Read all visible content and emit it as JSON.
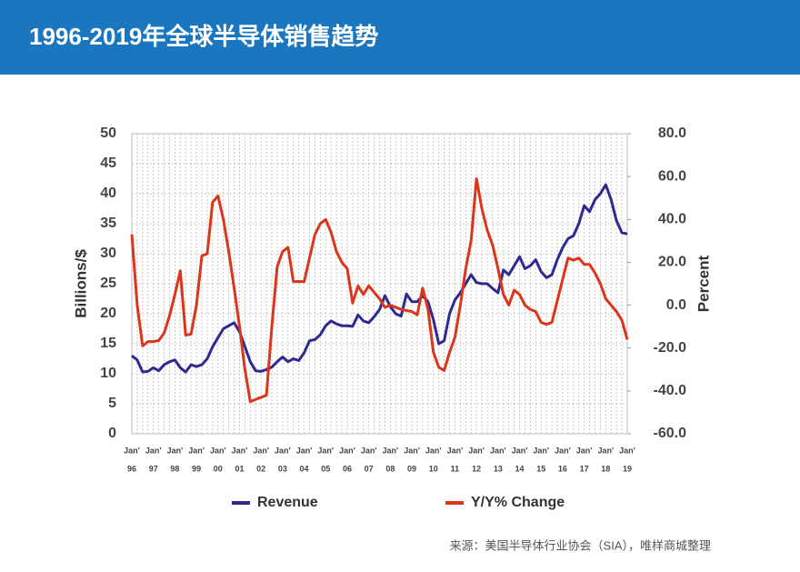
{
  "chart_data": {
    "type": "line",
    "title": "1996-2019年全球半导体销售趋势",
    "y_label": "Billions/$",
    "y2_label": "Percent",
    "source": "来源：美国半导体行业协会（SIA），唯样商城整理",
    "tick_prefix": "Jan'",
    "categories": [
      "96",
      null,
      null,
      null,
      "97",
      null,
      null,
      null,
      "98",
      null,
      null,
      null,
      "99",
      null,
      null,
      null,
      "00",
      null,
      null,
      null,
      "01",
      null,
      null,
      null,
      "02",
      null,
      null,
      null,
      "03",
      null,
      null,
      null,
      "04",
      null,
      null,
      null,
      "05",
      null,
      null,
      null,
      "06",
      null,
      null,
      null,
      "07",
      null,
      null,
      null,
      "08",
      null,
      null,
      null,
      "09",
      null,
      null,
      null,
      "10",
      null,
      null,
      null,
      "11",
      null,
      null,
      null,
      "12",
      null,
      null,
      null,
      "13",
      null,
      null,
      null,
      "14",
      null,
      null,
      null,
      "15",
      null,
      null,
      null,
      "16",
      null,
      null,
      null,
      "17",
      null,
      null,
      null,
      "18",
      null,
      null,
      null,
      "19"
    ],
    "series": [
      {
        "name": "Revenue",
        "color": "#2e2a8f",
        "axis": "y",
        "values": [
          13,
          12.3,
          10.3,
          10.4,
          11,
          10.5,
          11.5,
          12,
          12.3,
          11,
          10.3,
          11.5,
          11.2,
          11.5,
          12.5,
          14.5,
          16,
          17.5,
          18,
          18.5,
          17,
          14.5,
          12,
          10.5,
          10.4,
          10.7,
          11.1,
          12,
          12.8,
          12,
          12.5,
          12.2,
          13.5,
          15.5,
          15.7,
          16.5,
          18,
          18.8,
          18.3,
          18,
          18,
          17.9,
          19.8,
          18.8,
          18.5,
          19.5,
          20.7,
          23,
          21.2,
          20,
          19.6,
          23.3,
          22,
          22,
          23,
          22,
          19,
          15,
          15.5,
          20,
          22.3,
          23.5,
          25,
          26.5,
          25.2,
          25,
          25,
          24.2,
          23.5,
          27.3,
          26.5,
          28,
          29.5,
          27.5,
          28,
          29,
          27,
          26,
          26.5,
          29,
          31,
          32.5,
          33,
          35,
          38,
          37,
          39,
          40,
          41.5,
          39,
          35.5,
          33.5,
          33.3
        ]
      },
      {
        "name": "Y/Y% Change",
        "color": "#d9361c",
        "axis": "y2",
        "values": [
          33,
          0,
          -19,
          -17,
          -17,
          -16.5,
          -13,
          -5,
          5,
          16,
          -14,
          -13.5,
          0,
          23,
          24,
          48,
          51,
          40,
          25,
          8,
          -10,
          -30,
          -45,
          -44,
          -43,
          -42,
          -10,
          18,
          25,
          27,
          11,
          11,
          11,
          22,
          33,
          38,
          40,
          34,
          25,
          20,
          17,
          1,
          9,
          5,
          9,
          6,
          3,
          -1,
          0,
          -1,
          -2,
          -2.5,
          -3,
          -4.5,
          8,
          -2,
          -22,
          -29,
          -30.5,
          -22,
          -15,
          0,
          17,
          30,
          59,
          45,
          35,
          28,
          17,
          5,
          0,
          7,
          5,
          0,
          -2,
          -3,
          -8,
          -9,
          -8,
          2,
          12,
          22,
          21,
          22,
          19,
          19,
          15,
          10,
          3,
          0,
          -3,
          -7,
          -16
        ]
      }
    ],
    "ylim": [
      0,
      50
    ],
    "yticks": [
      0,
      5,
      10,
      15,
      20,
      25,
      30,
      35,
      40,
      45,
      50
    ],
    "y2lim": [
      -60,
      80
    ],
    "y2ticks": [
      {
        "value": -60,
        "label": "-60.0"
      },
      {
        "value": -40,
        "label": "-40.0"
      },
      {
        "value": -20,
        "label": "-20.0"
      },
      {
        "value": 0,
        "label": "0.0"
      },
      {
        "value": 20,
        "label": "20.0"
      },
      {
        "value": 40,
        "label": "40.0"
      },
      {
        "value": 60,
        "label": "60.0"
      },
      {
        "value": 80,
        "label": "80.0"
      }
    ],
    "grid": true
  }
}
